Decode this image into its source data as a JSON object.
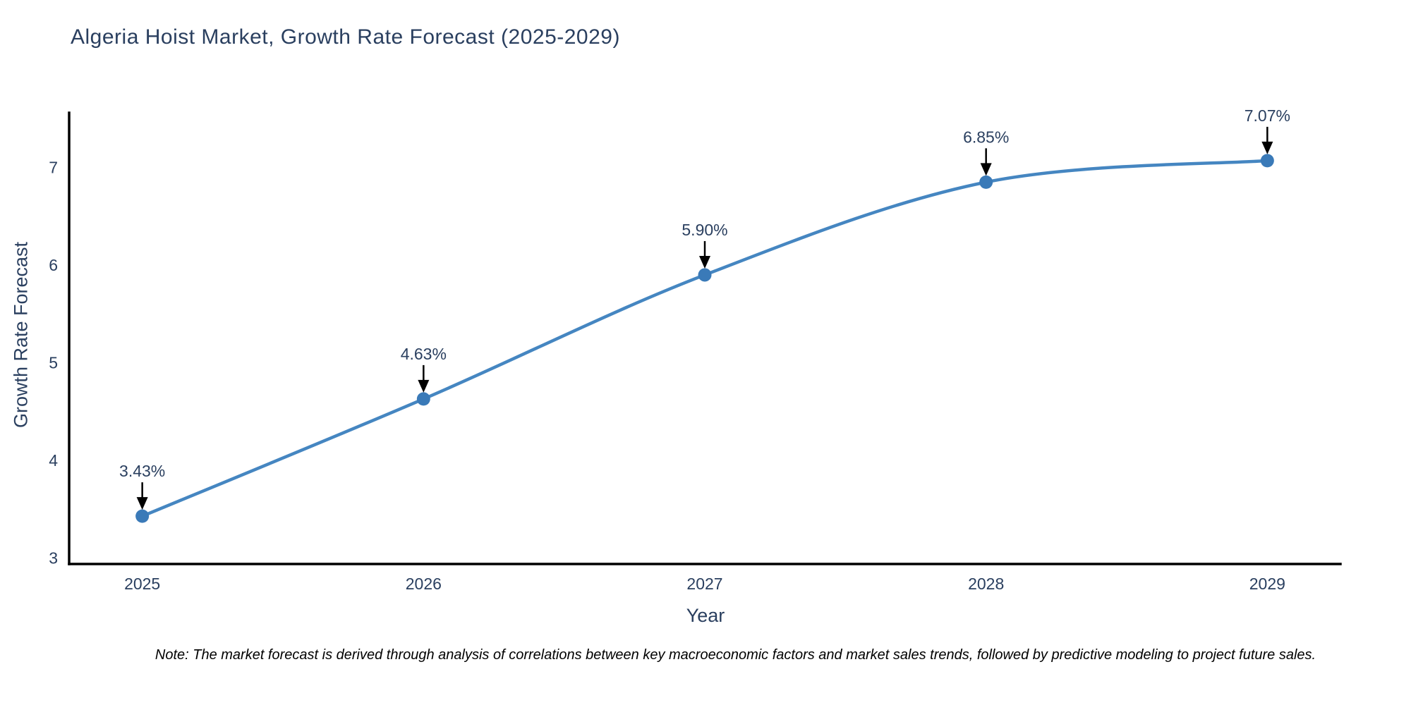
{
  "chart_data": {
    "type": "line",
    "title": "Algeria Hoist Market, Growth Rate Forecast (2025-2029)",
    "xlabel": "Year",
    "ylabel": "Growth Rate Forecast",
    "x": [
      2025,
      2026,
      2027,
      2028,
      2029
    ],
    "series": [
      {
        "name": "Growth Rate Forecast",
        "values": [
          3.43,
          4.63,
          5.9,
          6.85,
          7.07
        ]
      }
    ],
    "point_labels": [
      "3.43%",
      "4.63%",
      "5.90%",
      "6.85%",
      "7.07%"
    ],
    "xtick_labels": [
      "2025",
      "2026",
      "2027",
      "2028",
      "2029"
    ],
    "ytick_values": [
      3,
      4,
      5,
      6,
      7
    ],
    "ytick_labels": [
      "3",
      "4",
      "5",
      "6",
      "7"
    ],
    "xlim": [
      2024.74,
      2029.26
    ],
    "ylim": [
      2.94,
      7.56
    ],
    "grid": false,
    "legend": "none",
    "line_shape": "spline",
    "marker": "circle",
    "annotation_arrows": true,
    "colors": {
      "line": "#4586c1",
      "marker": "#3a7ab8",
      "axis_line": "#000000",
      "tick_text": "#2a3f5f",
      "annotation_text": "#2a3f5f",
      "annotation_arrow": "#000000",
      "title_text": "#2a3f5f",
      "note_text": "#000000",
      "background": "#ffffff"
    },
    "note": "Note: The market forecast is derived through analysis of correlations between key macroeconomic factors and market sales trends, followed by predictive modeling to project future sales."
  }
}
